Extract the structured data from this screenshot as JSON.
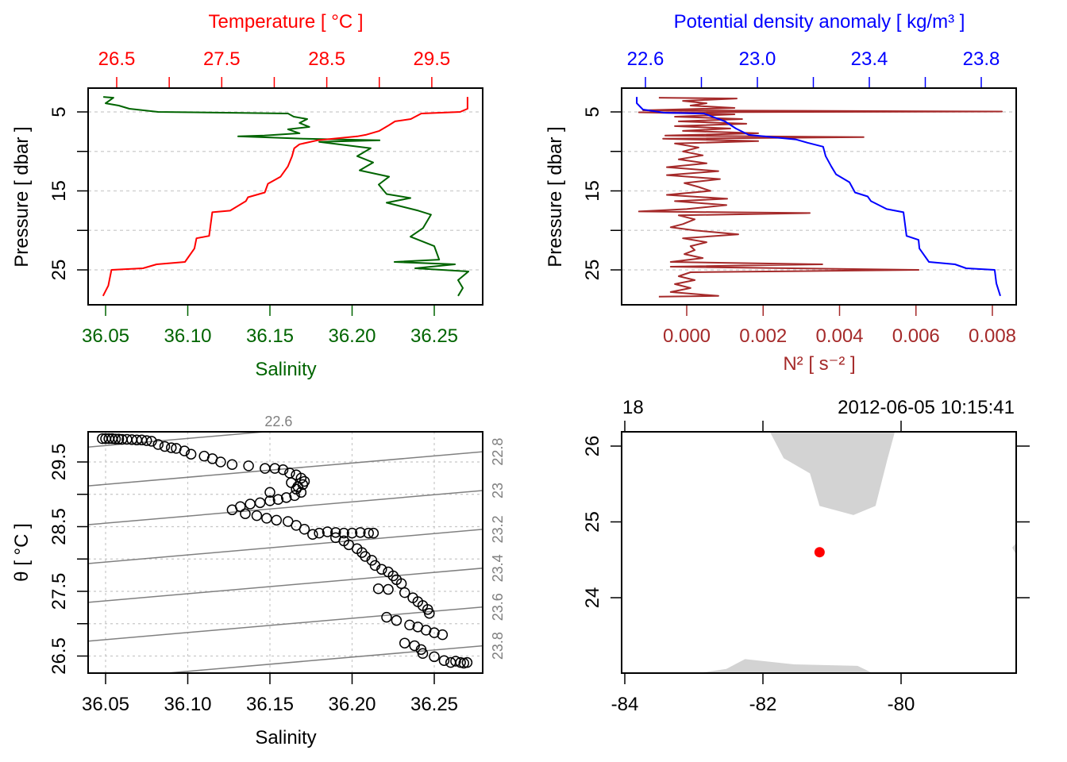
{
  "colors": {
    "temperature": "#FF0000",
    "salinity": "#006400",
    "sigma": "#0000FF",
    "n2": "#A52A2A",
    "station": "#FF0000",
    "land": "#D3D3D3",
    "isopycnal": "#808080"
  },
  "chart_data": [
    {
      "type": "line",
      "panel": "temperature-salinity-profile",
      "top_axis": {
        "label": "Temperature [ °C ]",
        "ticks": [
          26.5,
          27,
          27.5,
          28,
          28.5,
          29,
          29.5
        ],
        "labels": [
          {
            "value": 26.5,
            "text": "26.5"
          },
          {
            "value": 27.5,
            "text": "27.5"
          },
          {
            "value": 28.5,
            "text": "28.5"
          },
          {
            "value": 29.5,
            "text": "29.5"
          }
        ]
      },
      "bottom_axis": {
        "label": "Salinity",
        "ticks": [
          36.05,
          36.1,
          36.15,
          36.2,
          36.25
        ],
        "labels": [
          {
            "value": 36.05,
            "text": "36.05"
          },
          {
            "value": 36.1,
            "text": "36.10"
          },
          {
            "value": 36.15,
            "text": "36.15"
          },
          {
            "value": 36.2,
            "text": "36.20"
          },
          {
            "value": 36.25,
            "text": "36.25"
          }
        ]
      },
      "left_axis": {
        "label": "Pressure [ dbar ]",
        "ticks": [
          5,
          10,
          15,
          20,
          25
        ],
        "labels": [
          {
            "value": 5,
            "text": "5"
          },
          {
            "value": 15,
            "text": "15"
          },
          {
            "value": 25,
            "text": "25"
          }
        ]
      },
      "grid": true,
      "series": [
        {
          "name": "Temperature",
          "pressure": [
            3.1,
            4.6,
            5.0,
            5.2,
            5.9,
            6.2,
            6.7,
            7.4,
            7.9,
            8.1,
            8.6,
            9.1,
            9.6,
            10.6,
            11.9,
            13.2,
            14.1,
            15.2,
            15.8,
            16.3,
            17.5,
            17.7,
            20.7,
            21.0,
            22.3,
            24.0,
            24.3,
            24.8,
            25.0,
            27.0,
            28.3
          ],
          "values": [
            29.84,
            29.84,
            29.77,
            29.4,
            29.3,
            29.15,
            29.09,
            29.0,
            28.87,
            28.79,
            28.41,
            28.24,
            28.19,
            28.17,
            28.13,
            28.06,
            27.94,
            27.91,
            27.75,
            27.73,
            27.58,
            27.41,
            27.38,
            27.26,
            27.24,
            27.15,
            26.88,
            26.75,
            26.45,
            26.42,
            26.37
          ]
        },
        {
          "name": "Salinity",
          "pressure": [
            3.1,
            3.2,
            3.9,
            4.2,
            4.6,
            5.0,
            5.2,
            5.6,
            5.9,
            6.4,
            6.9,
            7.2,
            7.7,
            8.0,
            8.1,
            8.4,
            8.6,
            8.8,
            9.6,
            10.6,
            11.4,
            12.4,
            13.2,
            14.2,
            15.4,
            15.9,
            16.5,
            17.5,
            18.0,
            19.7,
            20.8,
            22.0,
            23.7,
            24.0,
            24.3,
            24.8,
            25.2,
            26.3,
            27.3,
            28.3
          ],
          "values": [
            36.0486,
            36.0548,
            36.05,
            36.058,
            36.0645,
            36.082,
            36.161,
            36.1645,
            36.1727,
            36.168,
            36.174,
            36.161,
            36.168,
            36.1466,
            36.1307,
            36.1708,
            36.2167,
            36.18,
            36.2113,
            36.2031,
            36.2128,
            36.2046,
            36.2225,
            36.2162,
            36.221,
            36.2355,
            36.221,
            36.2403,
            36.248,
            36.2432,
            36.2355,
            36.25,
            36.253,
            36.2258,
            36.2626,
            36.2384,
            36.2708,
            36.2645,
            36.2674,
            36.2645
          ]
        }
      ]
    },
    {
      "type": "line",
      "panel": "density-n2-profile",
      "top_axis": {
        "label": "Potential density anomaly [ kg/m³ ]",
        "ticks": [
          22.6,
          22.8,
          23.0,
          23.2,
          23.4,
          23.6,
          23.8
        ],
        "labels": [
          {
            "value": 22.6,
            "text": "22.6"
          },
          {
            "value": 23.0,
            "text": "23.0"
          },
          {
            "value": 23.4,
            "text": "23.4"
          },
          {
            "value": 23.8,
            "text": "23.8"
          }
        ]
      },
      "bottom_axis": {
        "label": "N² [ s⁻² ]",
        "ticks": [
          0,
          0.002,
          0.004,
          0.006,
          0.008
        ],
        "labels": [
          {
            "value": 0,
            "text": "0.000"
          },
          {
            "value": 0.002,
            "text": "0.002"
          },
          {
            "value": 0.004,
            "text": "0.004"
          },
          {
            "value": 0.006,
            "text": "0.006"
          },
          {
            "value": 0.008,
            "text": "0.008"
          }
        ]
      },
      "left_axis": {
        "label": "Pressure [ dbar ]",
        "ticks": [
          5,
          10,
          15,
          20,
          25
        ],
        "labels": [
          {
            "value": 5,
            "text": "5"
          },
          {
            "value": 15,
            "text": "15"
          },
          {
            "value": 25,
            "text": "25"
          }
        ]
      },
      "grid": true,
      "series": [
        {
          "name": "Potential density anomaly",
          "pressure": [
            3.1,
            3.9,
            4.7,
            5.1,
            5.2,
            6.2,
            7.1,
            7.9,
            8.5,
            8.9,
            9.4,
            10.6,
            11.9,
            12.9,
            13.9,
            15.2,
            15.7,
            16.3,
            17.3,
            17.7,
            20.7,
            21.2,
            22.3,
            24.0,
            24.3,
            24.8,
            25.0,
            26.7,
            28.3
          ],
          "values": [
            22.569,
            22.569,
            22.591,
            22.668,
            22.81,
            22.884,
            22.923,
            22.969,
            23.139,
            23.179,
            23.235,
            23.244,
            23.264,
            23.281,
            23.329,
            23.349,
            23.394,
            23.406,
            23.462,
            23.522,
            23.533,
            23.576,
            23.579,
            23.613,
            23.706,
            23.746,
            23.848,
            23.854,
            23.868
          ]
        },
        {
          "name": "N2",
          "pressure": [
            3.2,
            3.3,
            3.6,
            3.9,
            4.2,
            4.5,
            4.8,
            4.95,
            5.05,
            5.3,
            5.6,
            5.9,
            6.2,
            6.5,
            6.8,
            7.1,
            7.4,
            7.7,
            8.0,
            8.2,
            8.4,
            8.7,
            9.0,
            9.5,
            10.0,
            10.5,
            11.0,
            11.5,
            12.0,
            12.5,
            13.0,
            13.5,
            14.0,
            14.5,
            15.0,
            15.5,
            16.0,
            16.3,
            16.8,
            17.3,
            17.6,
            17.8,
            18.1,
            18.6,
            19.2,
            19.6,
            20.0,
            20.5,
            21.0,
            21.5,
            22.0,
            22.5,
            23.0,
            23.5,
            24.0,
            24.3,
            24.6,
            25.0,
            25.3,
            25.8,
            26.3,
            26.8,
            27.3,
            27.8,
            28.3,
            28.4
          ],
          "values": [
            -0.00073,
            0.00131,
            -0.0001,
            0.00052,
            0.0001,
            0.00125,
            -0.00114,
            0.00825,
            -0.00125,
            0.00125,
            -0.00031,
            0.00145,
            -0.00021,
            0.00156,
            -0.00031,
            0.00114,
            -0.0001,
            0.00187,
            -0.00056,
            0.00463,
            -0.00062,
            0.00187,
            -0.00031,
            0.00031,
            -0.0001,
            0.00042,
            -0.00021,
            0.00052,
            -0.00052,
            0.00083,
            -0.00052,
            0.00087,
            -6e-05,
            0.00031,
            0.00062,
            -0.00052,
            0.00106,
            -0.00031,
            0.00104,
            0,
            -0.00125,
            0.00322,
            -0.00021,
            0.00021,
            -0.0001,
            -0.00042,
            0.00021,
            0.00135,
            -0.0001,
            0.00052,
            0.0001,
            0.00021,
            -6e-05,
            0.00042,
            -0.00042,
            0.00355,
            -0.00042,
            0.00607,
            0.0001,
            -0.00021,
            0.00021,
            -0.00031,
            0.0001,
            -0.00042,
            0.00083,
            -0.00073
          ]
        }
      ]
    },
    {
      "type": "scatter",
      "panel": "ts-diagram",
      "xlabel": "Salinity",
      "ylabel": "θ [ °C ]",
      "bottom_axis": {
        "ticks": [
          36.05,
          36.1,
          36.15,
          36.2,
          36.25
        ],
        "labels": [
          {
            "value": 36.05,
            "text": "36.05"
          },
          {
            "value": 36.1,
            "text": "36.10"
          },
          {
            "value": 36.15,
            "text": "36.15"
          },
          {
            "value": 36.2,
            "text": "36.20"
          },
          {
            "value": 36.25,
            "text": "36.25"
          }
        ]
      },
      "left_axis": {
        "ticks": [
          26.5,
          27,
          27.5,
          28,
          28.5,
          29,
          29.5
        ],
        "labels": [
          {
            "value": 26.5,
            "text": "26.5"
          },
          {
            "value": 27.5,
            "text": "27.5"
          },
          {
            "value": 28.5,
            "text": "28.5"
          },
          {
            "value": 29.5,
            "text": "29.5"
          }
        ]
      },
      "grid": true,
      "isopycnals": [
        {
          "value": 22.6,
          "text": "22.6"
        },
        {
          "value": 22.8,
          "text": "22.8"
        },
        {
          "value": 23.0,
          "text": "23"
        },
        {
          "value": 23.2,
          "text": "23.2"
        },
        {
          "value": 23.4,
          "text": "23.4"
        },
        {
          "value": 23.6,
          "text": "23.6"
        },
        {
          "value": 23.8,
          "text": "23.8"
        }
      ],
      "points": [
        [
          36.048,
          29.86
        ],
        [
          36.05,
          29.86
        ],
        [
          36.052,
          29.86
        ],
        [
          36.054,
          29.86
        ],
        [
          36.056,
          29.855
        ],
        [
          36.058,
          29.855
        ],
        [
          36.06,
          29.85
        ],
        [
          36.063,
          29.85
        ],
        [
          36.066,
          29.845
        ],
        [
          36.069,
          29.84
        ],
        [
          36.072,
          29.84
        ],
        [
          36.075,
          29.83
        ],
        [
          36.078,
          29.82
        ],
        [
          36.082,
          29.77
        ],
        [
          36.086,
          29.74
        ],
        [
          36.09,
          29.72
        ],
        [
          36.093,
          29.71
        ],
        [
          36.098,
          29.67
        ],
        [
          36.102,
          29.62
        ],
        [
          36.11,
          29.59
        ],
        [
          36.115,
          29.55
        ],
        [
          36.12,
          29.5
        ],
        [
          36.127,
          29.46
        ],
        [
          36.137,
          29.44
        ],
        [
          36.147,
          29.4
        ],
        [
          36.153,
          29.4
        ],
        [
          36.158,
          29.38
        ],
        [
          36.162,
          29.33
        ],
        [
          36.166,
          29.3
        ],
        [
          36.169,
          29.25
        ],
        [
          36.171,
          29.2
        ],
        [
          36.17,
          29.15
        ],
        [
          36.167,
          29.12
        ],
        [
          36.163,
          29.18
        ],
        [
          36.166,
          29.08
        ],
        [
          36.169,
          29.03
        ],
        [
          36.165,
          28.98
        ],
        [
          36.16,
          28.95
        ],
        [
          36.155,
          28.92
        ],
        [
          36.15,
          29.03
        ],
        [
          36.15,
          28.9
        ],
        [
          36.144,
          28.87
        ],
        [
          36.138,
          28.85
        ],
        [
          36.127,
          28.76
        ],
        [
          36.132,
          28.81
        ],
        [
          36.135,
          28.7
        ],
        [
          36.142,
          28.67
        ],
        [
          36.148,
          28.63
        ],
        [
          36.154,
          28.6
        ],
        [
          36.161,
          28.58
        ],
        [
          36.166,
          28.52
        ],
        [
          36.171,
          28.46
        ],
        [
          36.176,
          28.38
        ],
        [
          36.18,
          28.4
        ],
        [
          36.185,
          28.42
        ],
        [
          36.19,
          28.41
        ],
        [
          36.195,
          28.4
        ],
        [
          36.2,
          28.4
        ],
        [
          36.205,
          28.41
        ],
        [
          36.21,
          28.4
        ],
        [
          36.213,
          28.4
        ],
        [
          36.19,
          28.33
        ],
        [
          36.195,
          28.28
        ],
        [
          36.198,
          28.22
        ],
        [
          36.203,
          28.16
        ],
        [
          36.206,
          28.1
        ],
        [
          36.208,
          28.04
        ],
        [
          36.212,
          27.98
        ],
        [
          36.214,
          27.9
        ],
        [
          36.218,
          27.84
        ],
        [
          36.222,
          27.8
        ],
        [
          36.225,
          27.74
        ],
        [
          36.227,
          27.68
        ],
        [
          36.23,
          27.62
        ],
        [
          36.216,
          27.54
        ],
        [
          36.222,
          27.53
        ],
        [
          36.232,
          27.48
        ],
        [
          36.237,
          27.4
        ],
        [
          36.24,
          27.34
        ],
        [
          36.243,
          27.28
        ],
        [
          36.246,
          27.22
        ],
        [
          36.247,
          27.16
        ],
        [
          36.221,
          27.1
        ],
        [
          36.227,
          27.05
        ],
        [
          36.235,
          26.98
        ],
        [
          36.24,
          26.95
        ],
        [
          36.245,
          26.9
        ],
        [
          36.25,
          26.86
        ],
        [
          36.255,
          26.83
        ],
        [
          36.232,
          26.7
        ],
        [
          36.238,
          26.66
        ],
        [
          36.242,
          26.6
        ],
        [
          36.243,
          26.54
        ],
        [
          36.25,
          26.49
        ],
        [
          36.256,
          26.43
        ],
        [
          36.26,
          26.4
        ],
        [
          36.263,
          26.42
        ],
        [
          36.266,
          26.4
        ],
        [
          36.268,
          26.39
        ],
        [
          36.27,
          26.4
        ]
      ]
    },
    {
      "type": "map",
      "panel": "station-map",
      "station_label": "18",
      "time_label": "2012-06-05 10:15:41",
      "station": {
        "lon": -81.18,
        "lat": 24.6
      },
      "lon_labels": [
        {
          "value": -84,
          "text": "-84"
        },
        {
          "value": -82,
          "text": "-82"
        },
        {
          "value": -80,
          "text": "-80"
        }
      ],
      "lat_labels": [
        {
          "value": 24,
          "text": "24"
        },
        {
          "value": 25,
          "text": "25"
        },
        {
          "value": 26,
          "text": "26"
        }
      ],
      "land": [
        {
          "name": "florida",
          "coords": [
            [
              -81.9,
              26.19
            ],
            [
              -81.7,
              25.84
            ],
            [
              -81.32,
              25.64
            ],
            [
              -81.18,
              25.21
            ],
            [
              -80.69,
              25.09
            ],
            [
              -80.37,
              25.21
            ],
            [
              -80.2,
              25.82
            ],
            [
              -80.09,
              26.19
            ]
          ]
        },
        {
          "name": "cuba",
          "coords": [
            [
              -82.98,
              23.0
            ],
            [
              -82.53,
              23.06
            ],
            [
              -82.26,
              23.19
            ],
            [
              -81.55,
              23.12
            ],
            [
              -80.63,
              23.1
            ],
            [
              -80.4,
              23.0
            ]
          ]
        },
        {
          "name": "bahamas",
          "coords": [
            [
              -78.39,
              24.66
            ],
            [
              -78.33,
              24.73
            ],
            [
              -78.33,
              24.56
            ]
          ]
        }
      ]
    }
  ]
}
